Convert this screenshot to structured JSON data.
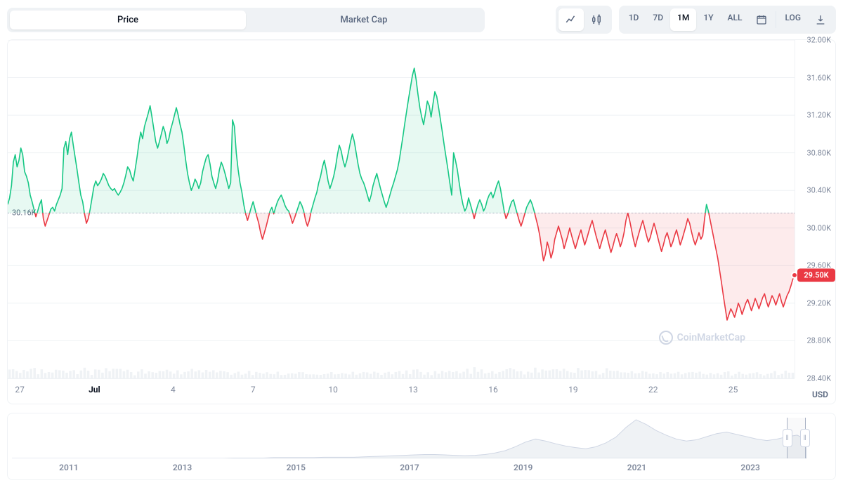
{
  "toolbar": {
    "view_tabs": [
      "Price",
      "Market Cap"
    ],
    "view_active": 0,
    "chart_type_icons": [
      "line-chart-icon",
      "candlestick-icon"
    ],
    "chart_type_active": 0,
    "ranges": [
      "1D",
      "7D",
      "1M",
      "1Y",
      "ALL"
    ],
    "range_active": 2,
    "log_label": "LOG"
  },
  "chart": {
    "type": "line",
    "ylim": [
      28.4,
      32.0
    ],
    "yticks": [
      32.0,
      31.6,
      31.2,
      30.8,
      30.4,
      30.0,
      29.6,
      29.2,
      28.8,
      28.4
    ],
    "ytick_labels": [
      "32.00K",
      "31.60K",
      "31.20K",
      "30.80K",
      "30.40K",
      "30.00K",
      "29.60K",
      "29.20K",
      "28.80K",
      "28.40K"
    ],
    "currency_label": "USD",
    "x_count": 750,
    "xticks": [
      {
        "pos": 18,
        "label": "27"
      },
      {
        "pos": 130,
        "label": "Jul",
        "bold": true
      },
      {
        "pos": 248,
        "label": "4"
      },
      {
        "pos": 368,
        "label": "7"
      },
      {
        "pos": 488,
        "label": "10"
      },
      {
        "pos": 608,
        "label": "13"
      },
      {
        "pos": 728,
        "label": "16"
      },
      {
        "pos": 848,
        "label": "19"
      },
      {
        "pos": 968,
        "label": "22"
      },
      {
        "pos": 1088,
        "label": "25"
      }
    ],
    "baseline_value": 30.16,
    "baseline_label": "30.16K",
    "current_value": 29.5,
    "current_label": "29.50K",
    "colors": {
      "up": "#16c784",
      "down": "#ea3943",
      "up_fill": "rgba(22,199,132,0.10)",
      "down_fill": "rgba(234,57,67,0.10)",
      "grid": "#eff2f5",
      "baseline": "#a6b0c3",
      "volume": "#eff2f5",
      "text": "#808a9d"
    },
    "line_width": 1.6,
    "values": [
      30.25,
      30.32,
      30.45,
      30.7,
      30.78,
      30.65,
      30.72,
      30.85,
      30.78,
      30.6,
      30.55,
      30.48,
      30.35,
      30.28,
      30.2,
      30.12,
      30.18,
      30.25,
      30.3,
      30.1,
      30.02,
      30.08,
      30.14,
      30.2,
      30.22,
      30.18,
      30.25,
      30.3,
      30.35,
      30.42,
      30.85,
      30.92,
      30.78,
      30.95,
      31.02,
      30.88,
      30.75,
      30.62,
      30.48,
      30.35,
      30.28,
      30.15,
      30.05,
      30.1,
      30.2,
      30.32,
      30.44,
      30.5,
      30.45,
      30.48,
      30.52,
      30.58,
      30.55,
      30.5,
      30.45,
      30.42,
      30.4,
      30.42,
      30.38,
      30.35,
      30.38,
      30.42,
      30.48,
      30.56,
      30.65,
      30.62,
      30.55,
      30.5,
      30.62,
      30.75,
      30.9,
      31.02,
      30.95,
      31.08,
      31.15,
      31.22,
      31.3,
      31.18,
      31.05,
      30.92,
      30.85,
      30.92,
      31.0,
      31.08,
      31.02,
      30.9,
      30.95,
      31.05,
      31.12,
      31.2,
      31.28,
      31.2,
      31.1,
      31.02,
      30.88,
      30.72,
      30.58,
      30.48,
      30.4,
      30.45,
      30.52,
      30.48,
      30.42,
      30.48,
      30.6,
      30.68,
      30.75,
      30.78,
      30.68,
      30.55,
      30.48,
      30.42,
      30.5,
      30.62,
      30.7,
      30.65,
      30.58,
      30.5,
      30.42,
      30.48,
      31.15,
      31.08,
      30.8,
      30.62,
      30.48,
      30.38,
      30.25,
      30.15,
      30.08,
      30.15,
      30.22,
      30.28,
      30.2,
      30.12,
      30.05,
      29.95,
      29.88,
      29.95,
      30.02,
      30.1,
      30.18,
      30.22,
      30.15,
      30.22,
      30.28,
      30.32,
      30.35,
      30.3,
      30.24,
      30.2,
      30.18,
      30.12,
      30.05,
      30.1,
      30.16,
      30.22,
      30.28,
      30.24,
      30.18,
      30.08,
      30.02,
      30.08,
      30.18,
      30.25,
      30.32,
      30.38,
      30.48,
      30.55,
      30.65,
      30.72,
      30.62,
      30.5,
      30.42,
      30.48,
      30.55,
      30.65,
      30.78,
      30.88,
      30.82,
      30.72,
      30.65,
      30.72,
      30.82,
      30.92,
      31.0,
      30.92,
      30.8,
      30.68,
      30.58,
      30.52,
      30.48,
      30.42,
      30.35,
      30.28,
      30.35,
      30.45,
      30.52,
      30.58,
      30.5,
      30.42,
      30.35,
      30.28,
      30.22,
      30.28,
      30.35,
      30.42,
      30.48,
      30.55,
      30.62,
      30.72,
      30.85,
      30.98,
      31.12,
      31.25,
      31.38,
      31.5,
      31.62,
      31.7,
      31.58,
      31.42,
      31.28,
      31.18,
      31.1,
      31.22,
      31.35,
      31.3,
      31.18,
      31.32,
      31.45,
      31.4,
      31.28,
      31.15,
      31.02,
      30.88,
      30.75,
      30.62,
      30.48,
      30.35,
      30.8,
      30.72,
      30.62,
      30.48,
      30.35,
      30.25,
      30.18,
      30.22,
      30.32,
      30.25,
      30.18,
      30.1,
      30.18,
      30.25,
      30.3,
      30.25,
      30.18,
      30.22,
      30.3,
      30.35,
      30.38,
      30.32,
      30.38,
      30.45,
      30.5,
      30.42,
      30.3,
      30.18,
      30.1,
      30.15,
      30.22,
      30.28,
      30.3,
      30.22,
      30.15,
      30.08,
      30.02,
      30.08,
      30.15,
      30.22,
      30.26,
      30.3,
      30.25,
      30.18,
      30.1,
      30.02,
      29.92,
      29.78,
      29.65,
      29.72,
      29.85,
      29.78,
      29.68,
      29.75,
      29.88,
      29.95,
      30.02,
      29.95,
      29.88,
      29.78,
      29.85,
      29.92,
      30.0,
      29.92,
      29.85,
      29.78,
      29.85,
      29.92,
      29.98,
      29.9,
      29.82,
      29.88,
      29.95,
      30.02,
      30.08,
      30.0,
      29.92,
      29.85,
      29.78,
      29.85,
      29.92,
      29.98,
      29.9,
      29.82,
      29.74,
      29.8,
      29.88,
      29.94,
      29.88,
      29.8,
      29.86,
      29.95,
      30.08,
      30.16,
      30.08,
      29.98,
      29.88,
      29.8,
      29.88,
      29.95,
      30.02,
      30.08,
      30.0,
      29.92,
      29.85,
      29.9,
      29.98,
      30.05,
      29.98,
      29.9,
      29.82,
      29.75,
      29.82,
      29.9,
      29.95,
      29.88,
      29.8,
      29.85,
      29.92,
      29.98,
      29.9,
      29.82,
      29.88,
      29.95,
      30.02,
      30.1,
      30.05,
      29.96,
      29.88,
      29.82,
      29.88,
      29.95,
      29.88,
      29.92,
      30.1,
      30.25,
      30.18,
      30.08,
      29.98,
      29.88,
      29.78,
      29.68,
      29.55,
      29.42,
      29.28,
      29.15,
      29.02,
      29.08,
      29.14,
      29.1,
      29.05,
      29.12,
      29.2,
      29.15,
      29.08,
      29.14,
      29.2,
      29.24,
      29.18,
      29.12,
      29.18,
      29.25,
      29.2,
      29.14,
      29.2,
      29.26,
      29.3,
      29.22,
      29.16,
      29.22,
      29.28,
      29.24,
      29.18,
      29.24,
      29.3,
      29.22,
      29.16,
      29.22,
      29.28,
      29.32,
      29.38,
      29.45,
      29.5
    ],
    "volumes_seed": 42,
    "watermark": "CoinMarketCap"
  },
  "range_selector": {
    "xticks": [
      "2011",
      "2013",
      "2015",
      "2017",
      "2019",
      "2021",
      "2023"
    ],
    "area_values": [
      0,
      0,
      0,
      0,
      0,
      0,
      0,
      0,
      0,
      0,
      0,
      0,
      0,
      0,
      0,
      0,
      0,
      0,
      0,
      0,
      0,
      0,
      1,
      1,
      1,
      1,
      2,
      2,
      2,
      2,
      2,
      3,
      3,
      3,
      3,
      4,
      5,
      6,
      7,
      8,
      9,
      10,
      10,
      9,
      8,
      7,
      8,
      10,
      14,
      20,
      30,
      42,
      50,
      45,
      38,
      32,
      28,
      25,
      30,
      40,
      55,
      80,
      100,
      88,
      72,
      60,
      50,
      45,
      48,
      56,
      64,
      68,
      62,
      56,
      50,
      46,
      50,
      56,
      60,
      48
    ],
    "selection": {
      "from": 0.974,
      "to": 0.998
    },
    "fill": "#eff2f5",
    "stroke": "#cfd6e4"
  }
}
